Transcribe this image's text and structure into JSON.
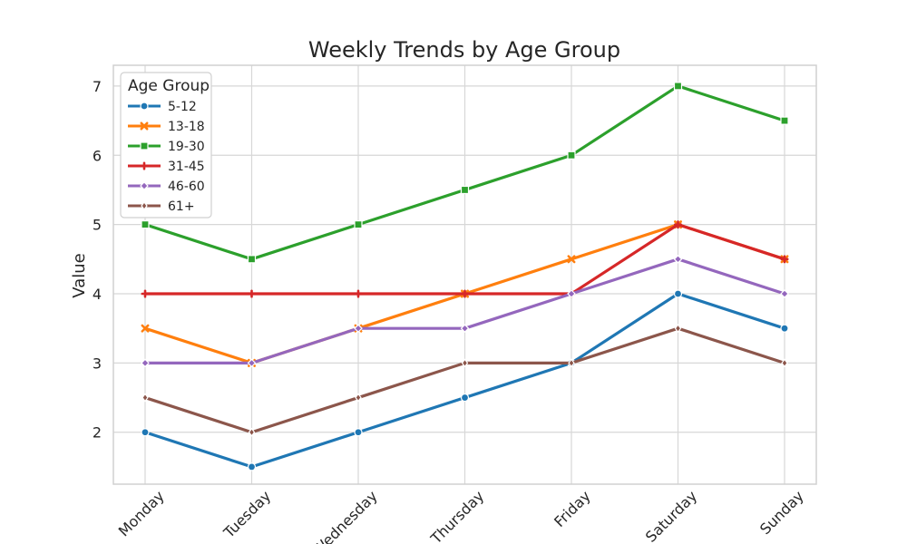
{
  "chart_data": {
    "type": "line",
    "title": "Weekly Trends by Age Group",
    "xlabel": "",
    "ylabel": "Value",
    "categories": [
      "Monday",
      "Tuesday",
      "Wednesday",
      "Thursday",
      "Friday",
      "Saturday",
      "Sunday"
    ],
    "y_ticks": [
      2,
      3,
      4,
      5,
      6,
      7
    ],
    "ylim": [
      1.25,
      7.3
    ],
    "grid": true,
    "legend": {
      "title": "Age Group",
      "placement": "top-left"
    },
    "series": [
      {
        "name": "5-12",
        "values": [
          2,
          1.5,
          2,
          2.5,
          3,
          4,
          3.5
        ],
        "color": "#1f77b4",
        "marker": "circle"
      },
      {
        "name": "13-18",
        "values": [
          3.5,
          3,
          3.5,
          4,
          4.5,
          5,
          4.5
        ],
        "color": "#ff7f0e",
        "marker": "x"
      },
      {
        "name": "19-30",
        "values": [
          5,
          4.5,
          5,
          5.5,
          6,
          7,
          6.5
        ],
        "color": "#2ca02c",
        "marker": "square"
      },
      {
        "name": "31-45",
        "values": [
          4,
          4,
          4,
          4,
          4,
          5,
          4.5
        ],
        "color": "#d62728",
        "marker": "plus"
      },
      {
        "name": "46-60",
        "values": [
          3,
          3,
          3.5,
          3.5,
          4,
          4.5,
          4
        ],
        "color": "#9467bd",
        "marker": "diamond"
      },
      {
        "name": "61+",
        "values": [
          2.5,
          2,
          2.5,
          3,
          3,
          3.5,
          3
        ],
        "color": "#8c564b",
        "marker": "thin-diamond"
      }
    ]
  }
}
